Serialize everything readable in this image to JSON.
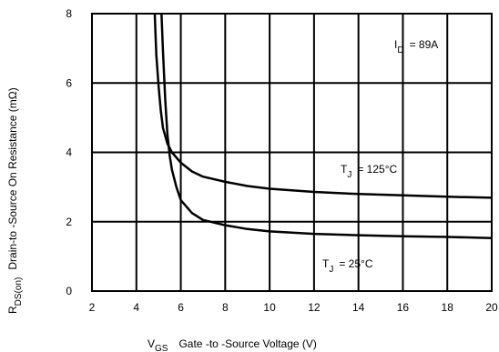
{
  "chart_data": {
    "type": "line",
    "xlabel_prefix": "V",
    "xlabel_sub": "GS",
    "xlabel": "Gate -to -Source Voltage  (V)",
    "ylabel_prefix": "R",
    "ylabel_sub": "DS(on)",
    "ylabel": "Drain-to -Source On Resistance (mΩ)",
    "xlim": [
      2,
      20
    ],
    "ylim": [
      0,
      8
    ],
    "xticks": [
      "2",
      "4",
      "6",
      "8",
      "10",
      "12",
      "14",
      "16",
      "18",
      "20"
    ],
    "yticks": [
      "0",
      "2",
      "4",
      "6",
      "8"
    ],
    "grid": true,
    "annotations": {
      "id_prefix": "I",
      "id_sub": "D",
      "id_value": "= 89A",
      "t125_prefix": "T",
      "t125_sub": "J",
      "t125_value": "= 125°C",
      "t25_prefix": "T",
      "t25_sub": "J",
      "t25_value": "= 25°C"
    },
    "series": [
      {
        "x": [
          4.8,
          4.85,
          4.9,
          5.0,
          5.1,
          5.2,
          5.4,
          5.6,
          6.0,
          6.5,
          7.0,
          8.0,
          9.0,
          10.0,
          12.0,
          14.0,
          16.0,
          18.0,
          20.0
        ],
        "y": [
          8.5,
          7.6,
          6.8,
          5.9,
          5.2,
          4.7,
          4.25,
          4.0,
          3.7,
          3.45,
          3.3,
          3.15,
          3.03,
          2.95,
          2.86,
          2.8,
          2.76,
          2.72,
          2.69
        ]
      },
      {
        "x": [
          5.1,
          5.2,
          5.3,
          5.4,
          5.5,
          5.6,
          5.8,
          6.0,
          6.5,
          7.0,
          8.0,
          9.0,
          10.0,
          12.0,
          14.0,
          16.0,
          18.0,
          20.0
        ],
        "y": [
          8.5,
          6.9,
          5.5,
          4.5,
          3.9,
          3.5,
          3.0,
          2.62,
          2.25,
          2.05,
          1.9,
          1.79,
          1.72,
          1.65,
          1.61,
          1.58,
          1.56,
          1.53
        ]
      }
    ]
  }
}
